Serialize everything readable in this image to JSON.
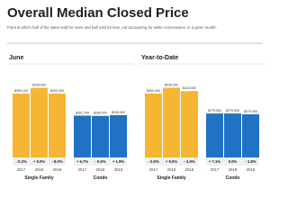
{
  "title": "Overall Median Closed Price",
  "subtitle": "Point at which half of the sales sold for more and half sold for less, not accounting for seller concessions, in a given month.",
  "chart_data": [
    {
      "type": "bar",
      "title": "June",
      "ylim": [
        0,
        450000
      ],
      "groups": [
        {
          "name": "Single Family",
          "color": "#f6b532",
          "categories": [
            "2017",
            "2018",
            "2019"
          ],
          "values": [
            399120,
            435000,
            400000
          ],
          "value_labels": [
            "$399,120",
            "$435,000",
            "$400,000"
          ],
          "changes": [
            "- 0.2%",
            "+ 9.0%",
            "- 8.0%"
          ]
        },
        {
          "name": "Condo",
          "color": "#1f72c4",
          "categories": [
            "2017",
            "2018",
            "2019"
          ],
          "values": [
            261700,
            260000,
            265000
          ],
          "value_labels": [
            "$261,700",
            "$260,000",
            "$265,000"
          ],
          "changes": [
            "+ 6.7%",
            "- 0.6%",
            "+ 1.9%"
          ]
        }
      ]
    },
    {
      "type": "bar",
      "title": "Year-to-Date",
      "ylim": [
        0,
        450000
      ],
      "groups": [
        {
          "name": "Single Family",
          "color": "#f6b532",
          "categories": [
            "2017",
            "2018",
            "2019"
          ],
          "values": [
            400000,
            436250,
            415000
          ],
          "value_labels": [
            "$400,000",
            "$436,250",
            "$415,000"
          ],
          "changes": [
            "- 0.5%",
            "+ 9.0%",
            "- 4.9%"
          ]
        },
        {
          "name": "Condo",
          "color": "#1f72c4",
          "categories": [
            "2017",
            "2018",
            "2019"
          ],
          "values": [
            275000,
            275000,
            270000
          ],
          "value_labels": [
            "$275,000",
            "$275,000",
            "$270,000"
          ],
          "changes": [
            "+ 7.1%",
            "0.0%",
            "- 1.8%"
          ]
        }
      ]
    }
  ]
}
